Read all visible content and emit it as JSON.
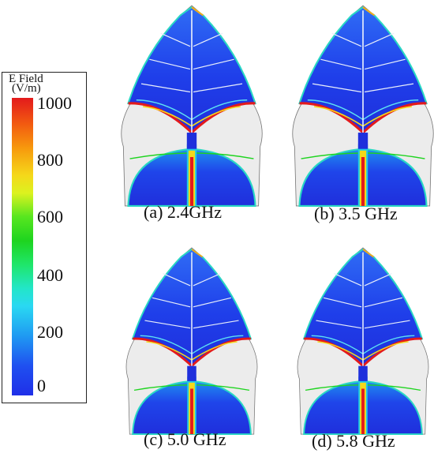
{
  "legend": {
    "title": "E Field",
    "unit": "(V/m)",
    "ticks": [
      "1000",
      "800",
      "600",
      "400",
      "200",
      "0"
    ],
    "colors": [
      "#e31a1c",
      "#f79a0d",
      "#f5d81a",
      "#1ed41f",
      "#2ad8f2",
      "#1f9af2",
      "#1f2fe8"
    ]
  },
  "panels": [
    {
      "caption": "(a) 2.4GHz"
    },
    {
      "caption": "(b) 3.5 GHz"
    },
    {
      "caption": "(c) 5.0 GHz"
    },
    {
      "caption": "(d) 5.8 GHz"
    }
  ]
}
